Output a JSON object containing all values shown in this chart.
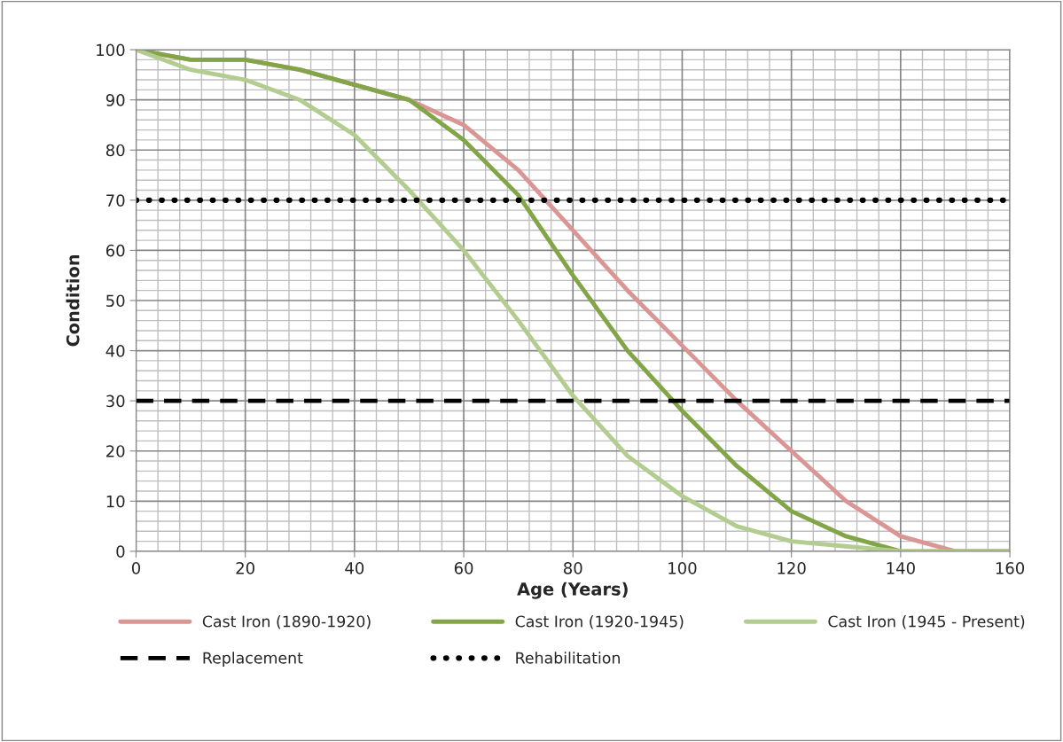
{
  "chart_data": {
    "type": "line",
    "xlabel": "Age (Years)",
    "ylabel": "Condition",
    "x": [
      0,
      10,
      20,
      30,
      40,
      50,
      60,
      70,
      80,
      90,
      100,
      110,
      120,
      130,
      140,
      150,
      160
    ],
    "series": [
      {
        "name": "Cast Iron (1890-1920)",
        "color": "#d99694",
        "values": [
          100,
          98,
          98,
          96,
          93,
          90,
          85,
          76,
          64,
          52,
          41,
          30,
          20,
          10,
          3,
          0,
          0
        ]
      },
      {
        "name": "Cast Iron (1920-1945)",
        "color": "#82a548",
        "values": [
          100,
          98,
          98,
          96,
          93,
          90,
          82,
          71,
          55,
          40,
          28,
          17,
          8,
          3,
          0,
          0,
          0
        ]
      },
      {
        "name": "Cast Iron (1945 - Present)",
        "color": "#b3cc8f",
        "values": [
          100,
          96,
          94,
          90,
          83,
          72,
          60,
          46,
          31,
          19,
          11,
          5,
          2,
          1,
          0,
          0,
          0
        ]
      }
    ],
    "ref_lines": [
      {
        "axis": "y",
        "value": 30,
        "label": "Replacement",
        "color": "#000000",
        "line_style": "dashed"
      },
      {
        "axis": "y",
        "value": 70,
        "label": "Rehabilitation",
        "color": "#000000",
        "line_style": "dotted"
      }
    ],
    "xlim": [
      0,
      160
    ],
    "xticks": [
      0,
      20,
      40,
      60,
      80,
      100,
      120,
      140,
      160
    ],
    "ylim": [
      0,
      100
    ],
    "yticks": [
      0,
      10,
      20,
      30,
      40,
      50,
      60,
      70,
      80,
      90,
      100
    ],
    "grid": true,
    "legend": "bottom",
    "marker": "none",
    "line_style": "solid"
  }
}
